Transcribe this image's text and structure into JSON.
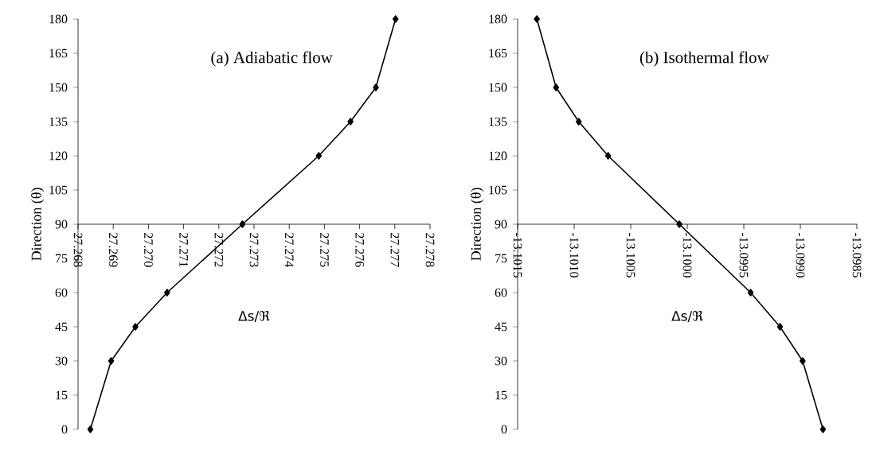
{
  "chart_data": [
    {
      "type": "line",
      "title": "(a) Adiabatic flow",
      "xlabel": "Δs/ℜ",
      "ylabel": "Direction (θ)",
      "x": [
        27.26835,
        27.26894,
        27.26963,
        27.27053,
        27.27267,
        27.27484,
        27.27574,
        27.27646,
        27.27702
      ],
      "series": [
        {
          "color": "#000000",
          "values": [
            0,
            30,
            45,
            60,
            90,
            120,
            135,
            150,
            180
          ]
        }
      ],
      "xlim": [
        27.268,
        27.278
      ],
      "xticks": [
        27.268,
        27.269,
        {
          "value": 27.27,
          "label": "27.270"
        },
        27.271,
        27.272,
        27.273,
        27.274,
        27.275,
        27.276,
        27.277,
        27.278
      ],
      "ylim": [
        0,
        180
      ],
      "yticks": [
        0,
        15,
        30,
        45,
        60,
        75,
        90,
        105,
        120,
        135,
        150,
        165,
        180
      ],
      "marker": "diamond",
      "line_style": "solid"
    },
    {
      "type": "line",
      "title": "(b) Isothermal flow",
      "xlabel": "Δs/ℜ",
      "ylabel": "Direction (θ)",
      "x": [
        -13.0988,
        -13.09898,
        -13.09918,
        -13.09944,
        -13.10007,
        -13.1007,
        -13.10096,
        -13.10116,
        -13.10133
      ],
      "series": [
        {
          "color": "#000000",
          "values": [
            0,
            30,
            45,
            60,
            90,
            120,
            135,
            150,
            180
          ]
        }
      ],
      "xlim": [
        -13.1015,
        -13.0985
      ],
      "xticks": [
        -13.1015,
        {
          "value": -13.101,
          "label": "-13.1010"
        },
        -13.1005,
        {
          "value": -13.1,
          "label": "-13.1000"
        },
        -13.0995,
        {
          "value": -13.099,
          "label": "-13.0990"
        },
        -13.0985
      ],
      "ylim": [
        0,
        180
      ],
      "yticks": [
        0,
        15,
        30,
        45,
        60,
        75,
        90,
        105,
        120,
        135,
        150,
        165,
        180
      ],
      "marker": "diamond",
      "line_style": "solid"
    }
  ]
}
